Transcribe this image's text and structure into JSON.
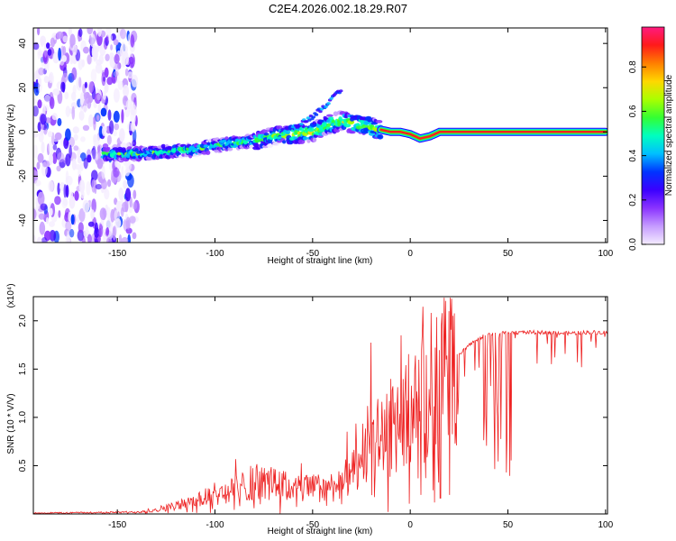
{
  "title": "C2E4.2026.002.18.29.R07",
  "chart_data": [
    {
      "type": "heatmap",
      "name": "spectrogram",
      "xlabel": "Height of straight line (km)",
      "ylabel": "Frequency (Hz)",
      "xlim": [
        -193,
        101
      ],
      "ylim": [
        -50,
        47
      ],
      "xticks": [
        -150,
        -100,
        -50,
        0,
        50,
        100
      ],
      "yticks": [
        -40,
        -20,
        0,
        20,
        40
      ],
      "colorbar": {
        "label": "Normalized spectral amplitude",
        "range": [
          0,
          0.98
        ],
        "ticks": [
          0.0,
          0.2,
          0.4,
          0.6,
          0.8
        ],
        "tick_labels": [
          "0.0",
          "0.2",
          "0.4",
          "0.6",
          "0.8"
        ],
        "colors": [
          "#f4ecff",
          "#c69cff",
          "#8a33ff",
          "#3b00ff",
          "#0033ff",
          "#00bfff",
          "#00ffbf",
          "#33ff33",
          "#aaff00",
          "#ffd700",
          "#ff7f00",
          "#ff1a1a",
          "#ff1a80"
        ]
      },
      "ridge": {
        "x": [
          -157,
          -140,
          -125,
          -110,
          -100,
          -90,
          -80,
          -70,
          -60,
          -50,
          -45,
          -40,
          -35,
          -30,
          -25,
          -20,
          -15,
          -10,
          -5,
          0,
          5,
          10,
          15,
          20,
          40,
          60,
          80,
          100
        ],
        "y": [
          -10,
          -10,
          -9,
          -8,
          -6,
          -5,
          -4,
          -2,
          -1,
          0,
          2,
          4,
          5,
          4,
          3,
          2,
          1,
          0,
          0,
          -1,
          -3,
          -2,
          0,
          0,
          0,
          0,
          0,
          0
        ]
      },
      "noise_region_x": [
        -193,
        -140
      ],
      "branch": {
        "x": [
          -60,
          -50,
          -45,
          -40,
          -35
        ],
        "y": [
          2,
          7,
          11,
          15,
          19
        ]
      }
    },
    {
      "type": "line",
      "name": "snr",
      "xlabel": "Height of straight line (km)",
      "ylabel": "SNR (10 * V/V)",
      "scale_label": "(x10⁴)",
      "xlim": [
        -193,
        101
      ],
      "ylim": [
        0,
        2.25
      ],
      "xticks": [
        -150,
        -100,
        -50,
        0,
        50,
        100
      ],
      "yticks": [
        0.5,
        1.0,
        1.5,
        2.0
      ],
      "ytick_labels": [
        "0.5",
        "1.0",
        "1.5",
        "2.0"
      ],
      "line_color": "#ee2222",
      "envelope": {
        "x": [
          -193,
          -140,
          -130,
          -120,
          -110,
          -100,
          -90,
          -80,
          -70,
          -60,
          -50,
          -40,
          -30,
          -25,
          -20,
          -15,
          -10,
          -5,
          0,
          5,
          10,
          20,
          30,
          40,
          50,
          60,
          70,
          80,
          90,
          101
        ],
        "y": [
          0.01,
          0.02,
          0.05,
          0.09,
          0.14,
          0.22,
          0.26,
          0.35,
          0.33,
          0.28,
          0.28,
          0.3,
          0.42,
          0.55,
          0.75,
          0.85,
          0.95,
          1.05,
          1.15,
          1.25,
          1.35,
          1.55,
          1.75,
          1.87,
          1.88,
          1.88,
          1.88,
          1.87,
          1.88,
          1.88
        ]
      }
    }
  ]
}
